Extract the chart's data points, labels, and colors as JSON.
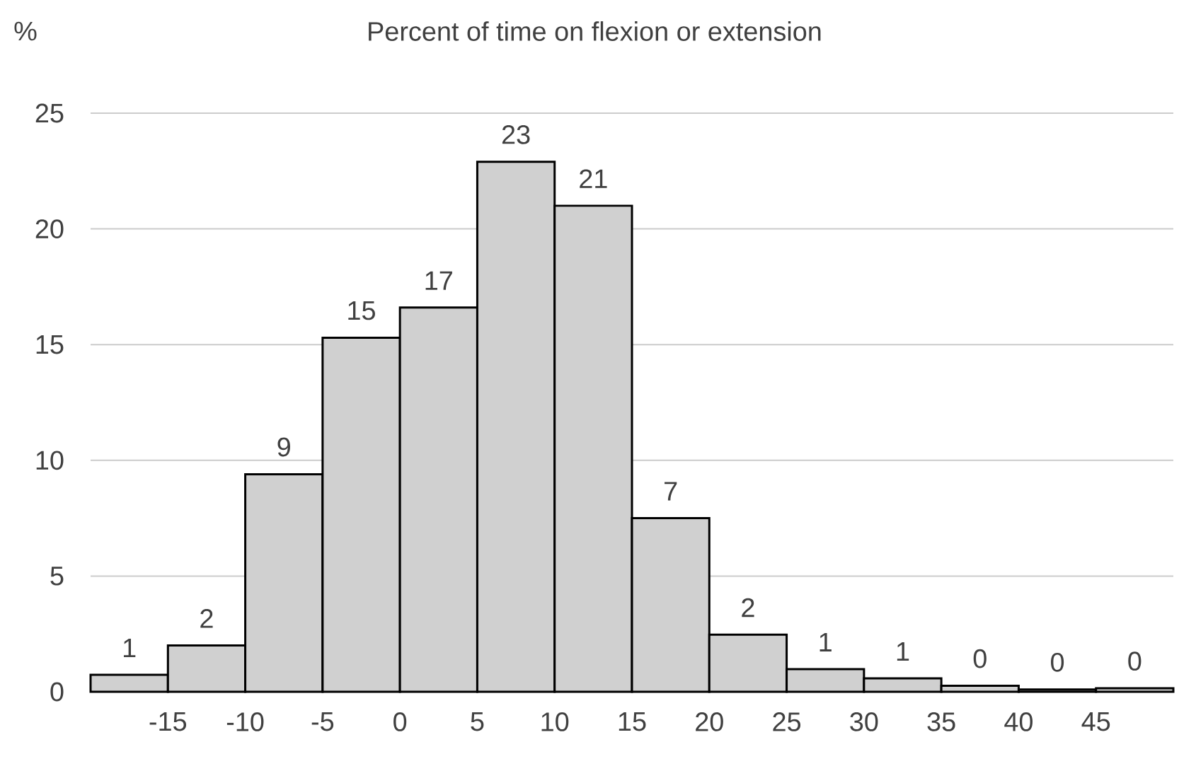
{
  "chart_data": {
    "type": "histogram",
    "title": "Percent of time on flexion or extension",
    "ylabel": "%",
    "bins": [
      -20,
      -15,
      -10,
      -5,
      0,
      5,
      10,
      15,
      20,
      25,
      30,
      35,
      40,
      45,
      50
    ],
    "values": [
      0.73,
      2.0,
      9.4,
      15.3,
      16.6,
      22.9,
      21.0,
      7.5,
      2.47,
      0.98,
      0.58,
      0.26,
      0.1,
      0.15
    ],
    "value_labels": [
      "1",
      "2",
      "9",
      "15",
      "17",
      "23",
      "21",
      "7",
      "2",
      "1",
      "1",
      "0",
      "0",
      "0"
    ],
    "color": "#d0d0d0",
    "xlim": [
      -20,
      50
    ],
    "xticks": [
      -15,
      -10,
      -5,
      0,
      5,
      10,
      15,
      20,
      25,
      30,
      35,
      40,
      45
    ],
    "ylim": [
      0,
      25
    ],
    "yticks": [
      0,
      5,
      10,
      15,
      20,
      25
    ],
    "grid": "y"
  }
}
